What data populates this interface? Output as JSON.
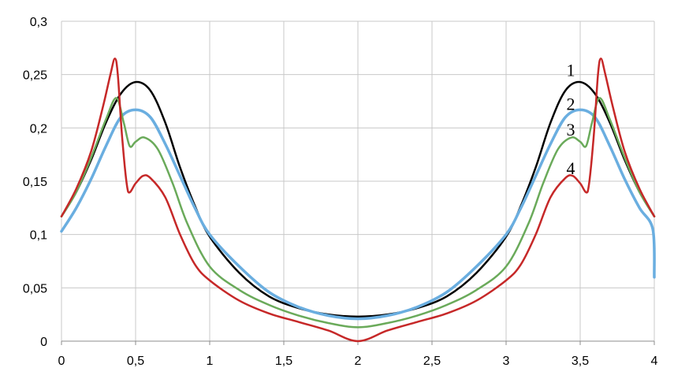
{
  "chart_data": {
    "type": "line",
    "title": "",
    "xlabel": "",
    "ylabel": "",
    "xlim": [
      0,
      4
    ],
    "ylim": [
      0,
      0.3
    ],
    "grid": true,
    "x_ticks": [
      {
        "value": 0,
        "label": "0"
      },
      {
        "value": 0.5,
        "label": "0,5"
      },
      {
        "value": 1,
        "label": "1"
      },
      {
        "value": 1.5,
        "label": "1,5"
      },
      {
        "value": 2,
        "label": "2"
      },
      {
        "value": 2.5,
        "label": "2,5"
      },
      {
        "value": 3,
        "label": "3"
      },
      {
        "value": 3.5,
        "label": "3,5"
      },
      {
        "value": 4,
        "label": "4"
      }
    ],
    "y_ticks": [
      {
        "value": 0,
        "label": "0"
      },
      {
        "value": 0.05,
        "label": "0,05"
      },
      {
        "value": 0.1,
        "label": "0,1"
      },
      {
        "value": 0.15,
        "label": "0,15"
      },
      {
        "value": 0.2,
        "label": "0,2"
      },
      {
        "value": 0.25,
        "label": "0,25"
      },
      {
        "value": 0.3,
        "label": "0,3"
      }
    ],
    "series": [
      {
        "label": "1",
        "label_at": [
          3.5,
          0.254
        ],
        "color": "#000000",
        "x": [
          0,
          0.1,
          0.2,
          0.3,
          0.4,
          0.5,
          0.6,
          0.7,
          0.8,
          0.9,
          1.0,
          1.2,
          1.4,
          1.6,
          1.8,
          2.0,
          2.2,
          2.4,
          2.6,
          2.8,
          3.0,
          3.1,
          3.2,
          3.3,
          3.4,
          3.5,
          3.6,
          3.7,
          3.8,
          3.9,
          4.0
        ],
        "y": [
          0.117,
          0.14,
          0.17,
          0.205,
          0.232,
          0.243,
          0.235,
          0.205,
          0.163,
          0.127,
          0.098,
          0.064,
          0.042,
          0.031,
          0.025,
          0.023,
          0.025,
          0.031,
          0.042,
          0.064,
          0.098,
          0.127,
          0.163,
          0.205,
          0.235,
          0.243,
          0.232,
          0.205,
          0.17,
          0.14,
          0.117
        ]
      },
      {
        "label": "2",
        "label_at": [
          3.5,
          0.222
        ],
        "color": "#6aaee0",
        "x": [
          0,
          0.1,
          0.2,
          0.3,
          0.4,
          0.5,
          0.6,
          0.7,
          0.8,
          0.9,
          1.0,
          1.2,
          1.4,
          1.6,
          1.8,
          2.0,
          2.2,
          2.4,
          2.6,
          2.8,
          3.0,
          3.1,
          3.2,
          3.3,
          3.4,
          3.5,
          3.6,
          3.7,
          3.8,
          3.9,
          3.99,
          4.0
        ],
        "y": [
          0.103,
          0.125,
          0.152,
          0.183,
          0.21,
          0.217,
          0.21,
          0.185,
          0.155,
          0.125,
          0.1,
          0.07,
          0.046,
          0.032,
          0.024,
          0.021,
          0.024,
          0.032,
          0.046,
          0.07,
          0.1,
          0.125,
          0.155,
          0.185,
          0.21,
          0.217,
          0.21,
          0.183,
          0.152,
          0.125,
          0.105,
          0.06
        ]
      },
      {
        "label": "3",
        "label_at": [
          3.5,
          0.198
        ],
        "color": "#6aaa5a",
        "x": [
          0,
          0.1,
          0.2,
          0.3,
          0.37,
          0.42,
          0.46,
          0.5,
          0.56,
          0.65,
          0.75,
          0.85,
          1.0,
          1.2,
          1.4,
          1.6,
          1.8,
          2.0,
          2.2,
          2.4,
          2.6,
          2.8,
          3.0,
          3.15,
          3.25,
          3.35,
          3.44,
          3.5,
          3.54,
          3.58,
          3.63,
          3.7,
          3.8,
          3.9,
          4.0
        ],
        "y": [
          0.117,
          0.14,
          0.172,
          0.208,
          0.228,
          0.205,
          0.183,
          0.187,
          0.191,
          0.18,
          0.148,
          0.11,
          0.07,
          0.048,
          0.034,
          0.024,
          0.017,
          0.013,
          0.017,
          0.024,
          0.034,
          0.048,
          0.07,
          0.11,
          0.148,
          0.18,
          0.191,
          0.187,
          0.183,
          0.205,
          0.228,
          0.208,
          0.172,
          0.14,
          0.117
        ]
      },
      {
        "label": "4",
        "label_at": [
          3.5,
          0.162
        ],
        "color": "#c62828",
        "x": [
          0,
          0.1,
          0.2,
          0.28,
          0.33,
          0.36,
          0.38,
          0.41,
          0.45,
          0.5,
          0.55,
          0.6,
          0.7,
          0.8,
          0.9,
          1.0,
          1.2,
          1.4,
          1.6,
          1.8,
          2.0,
          2.2,
          2.4,
          2.6,
          2.8,
          3.0,
          3.1,
          3.2,
          3.3,
          3.4,
          3.45,
          3.5,
          3.55,
          3.59,
          3.62,
          3.64,
          3.67,
          3.72,
          3.8,
          3.9,
          4.0
        ],
        "y": [
          0.117,
          0.143,
          0.178,
          0.22,
          0.25,
          0.265,
          0.25,
          0.19,
          0.14,
          0.148,
          0.155,
          0.153,
          0.135,
          0.1,
          0.072,
          0.057,
          0.038,
          0.026,
          0.018,
          0.01,
          0.0,
          0.01,
          0.018,
          0.026,
          0.038,
          0.057,
          0.072,
          0.1,
          0.135,
          0.153,
          0.155,
          0.148,
          0.14,
          0.19,
          0.25,
          0.265,
          0.25,
          0.22,
          0.178,
          0.143,
          0.117
        ]
      }
    ]
  }
}
